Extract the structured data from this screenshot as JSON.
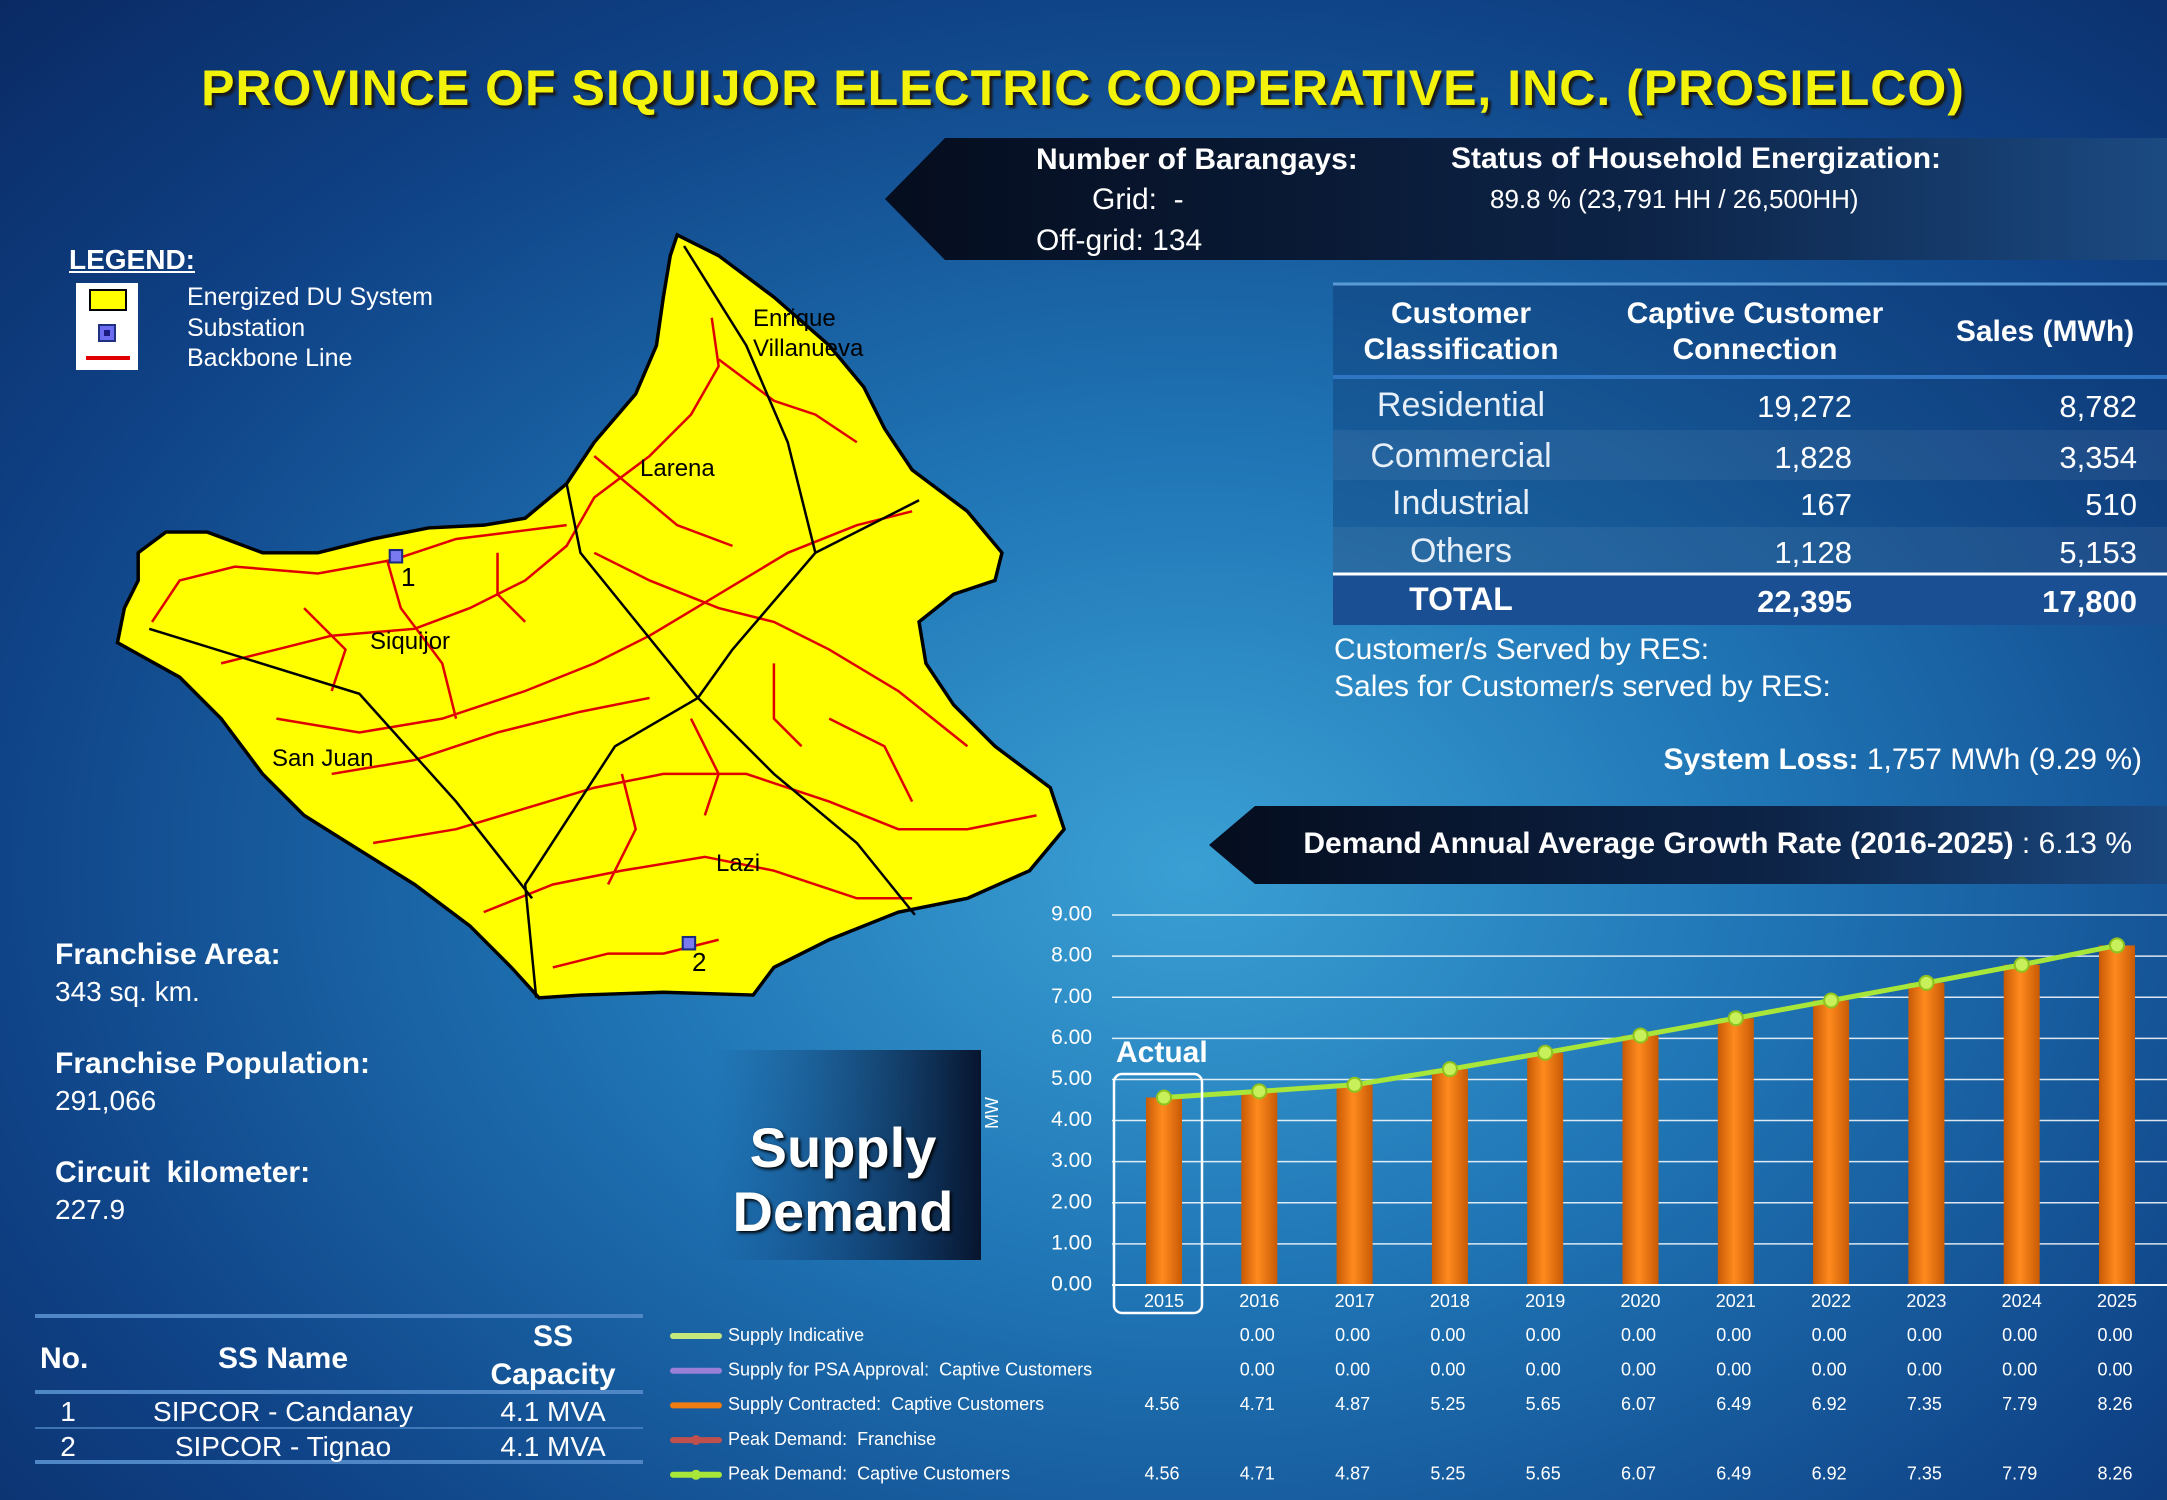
{
  "title": "PROVINCE OF SIQUIJOR ELECTRIC COOPERATIVE, INC. (PROSIELCO)",
  "barangays": {
    "label": "Number of Barangays:",
    "grid": "Grid:  -",
    "off_grid": "Off-grid: 134"
  },
  "energization": {
    "label": "Status of Household Energization:",
    "value": "89.8 % (23,791 HH / 26,500HH)"
  },
  "customers": {
    "headers": [
      "Customer Classification",
      "Captive Customer Connection",
      "Sales (MWh)"
    ],
    "rows": [
      [
        "Residential",
        "19,272",
        "8,782"
      ],
      [
        "Commercial",
        "1,828",
        "3,354"
      ],
      [
        "Industrial",
        "167",
        "510"
      ],
      [
        "Others",
        "1,128",
        "5,153"
      ]
    ],
    "total": [
      "TOTAL",
      "22,395",
      "17,800"
    ]
  },
  "res": [
    "Customer/s Served by RES:",
    "Sales for Customer/s served by RES:"
  ],
  "system_loss": {
    "label": "System Loss:",
    "value": "1,757 MWh (9.29 %)"
  },
  "growth_rate": {
    "label": "Demand Annual Average Growth Rate (2016-2025)",
    "value": ": 6.13 %"
  },
  "legend": {
    "title": "LEGEND:",
    "items": [
      "Energized DU System",
      "Substation",
      "Backbone Line"
    ]
  },
  "map": {
    "places": [
      "Enrique Villanueva",
      "Larena",
      "Siquijor",
      "San Juan",
      "Lazi"
    ],
    "substations": [
      "1",
      "2"
    ]
  },
  "franchise": [
    {
      "label": "Franchise Area:",
      "value": "343 sq. km."
    },
    {
      "label": "Franchise Population:",
      "value": "291,066"
    },
    {
      "label": "Circuit  kilometer:",
      "value": "227.9"
    }
  ],
  "substations": {
    "headers": [
      "No.",
      "SS Name",
      "SS Capacity"
    ],
    "rows": [
      [
        "1",
        "SIPCOR - Candanay",
        "4.1 MVA"
      ],
      [
        "2",
        "SIPCOR - Tignao",
        "4.1 MVA"
      ]
    ]
  },
  "supply_demand_label": "Supply Demand",
  "chart_data": {
    "type": "bar",
    "y_label": "MW",
    "annotation": "Actual",
    "categories": [
      "2015",
      "2016",
      "2017",
      "2018",
      "2019",
      "2020",
      "2021",
      "2022",
      "2023",
      "2024",
      "2025"
    ],
    "ylim": [
      0,
      9
    ],
    "yticks": [
      {
        "value": 0,
        "label": "0.00"
      },
      {
        "value": 1,
        "label": "1.00"
      },
      {
        "value": 2,
        "label": "2.00"
      },
      {
        "value": 3,
        "label": "3.00"
      },
      {
        "value": 4,
        "label": "4.00"
      },
      {
        "value": 5,
        "label": "5.00"
      },
      {
        "value": 6,
        "label": "6.00"
      },
      {
        "value": 7,
        "label": "7.00"
      },
      {
        "value": 8,
        "label": "8.00"
      },
      {
        "value": 9,
        "label": "9.00"
      }
    ],
    "grid": true,
    "series": [
      {
        "name": "Supply Indicative",
        "type": "line",
        "color": "#c4e87c",
        "values": [
          null,
          0,
          0,
          0,
          0,
          0,
          0,
          0,
          0,
          0,
          0
        ],
        "value_labels": [
          null,
          "0.00",
          "0.00",
          "0.00",
          "0.00",
          "0.00",
          "0.00",
          "0.00",
          "0.00",
          "0.00",
          "0.00"
        ]
      },
      {
        "name": "Supply for PSA Approval:  Captive Customers",
        "type": "line",
        "color": "#9a7fd6",
        "values": [
          null,
          0,
          0,
          0,
          0,
          0,
          0,
          0,
          0,
          0,
          0
        ],
        "value_labels": [
          null,
          "0.00",
          "0.00",
          "0.00",
          "0.00",
          "0.00",
          "0.00",
          "0.00",
          "0.00",
          "0.00",
          "0.00"
        ]
      },
      {
        "name": "Supply Contracted:  Captive Customers",
        "type": "bar",
        "color": "#f07c12",
        "values": [
          4.56,
          4.71,
          4.87,
          5.25,
          5.65,
          6.07,
          6.49,
          6.92,
          7.35,
          7.79,
          8.26
        ]
      },
      {
        "name": "Peak Demand:  Franchise",
        "type": "line",
        "color": "#c0504d",
        "values": [
          null,
          null,
          null,
          null,
          null,
          null,
          null,
          null,
          null,
          null,
          null
        ]
      },
      {
        "name": "Peak Demand:  Captive Customers",
        "type": "line",
        "color": "#a8e63a",
        "values": [
          4.56,
          4.71,
          4.87,
          5.25,
          5.65,
          6.07,
          6.49,
          6.92,
          7.35,
          7.79,
          8.26
        ]
      }
    ]
  }
}
